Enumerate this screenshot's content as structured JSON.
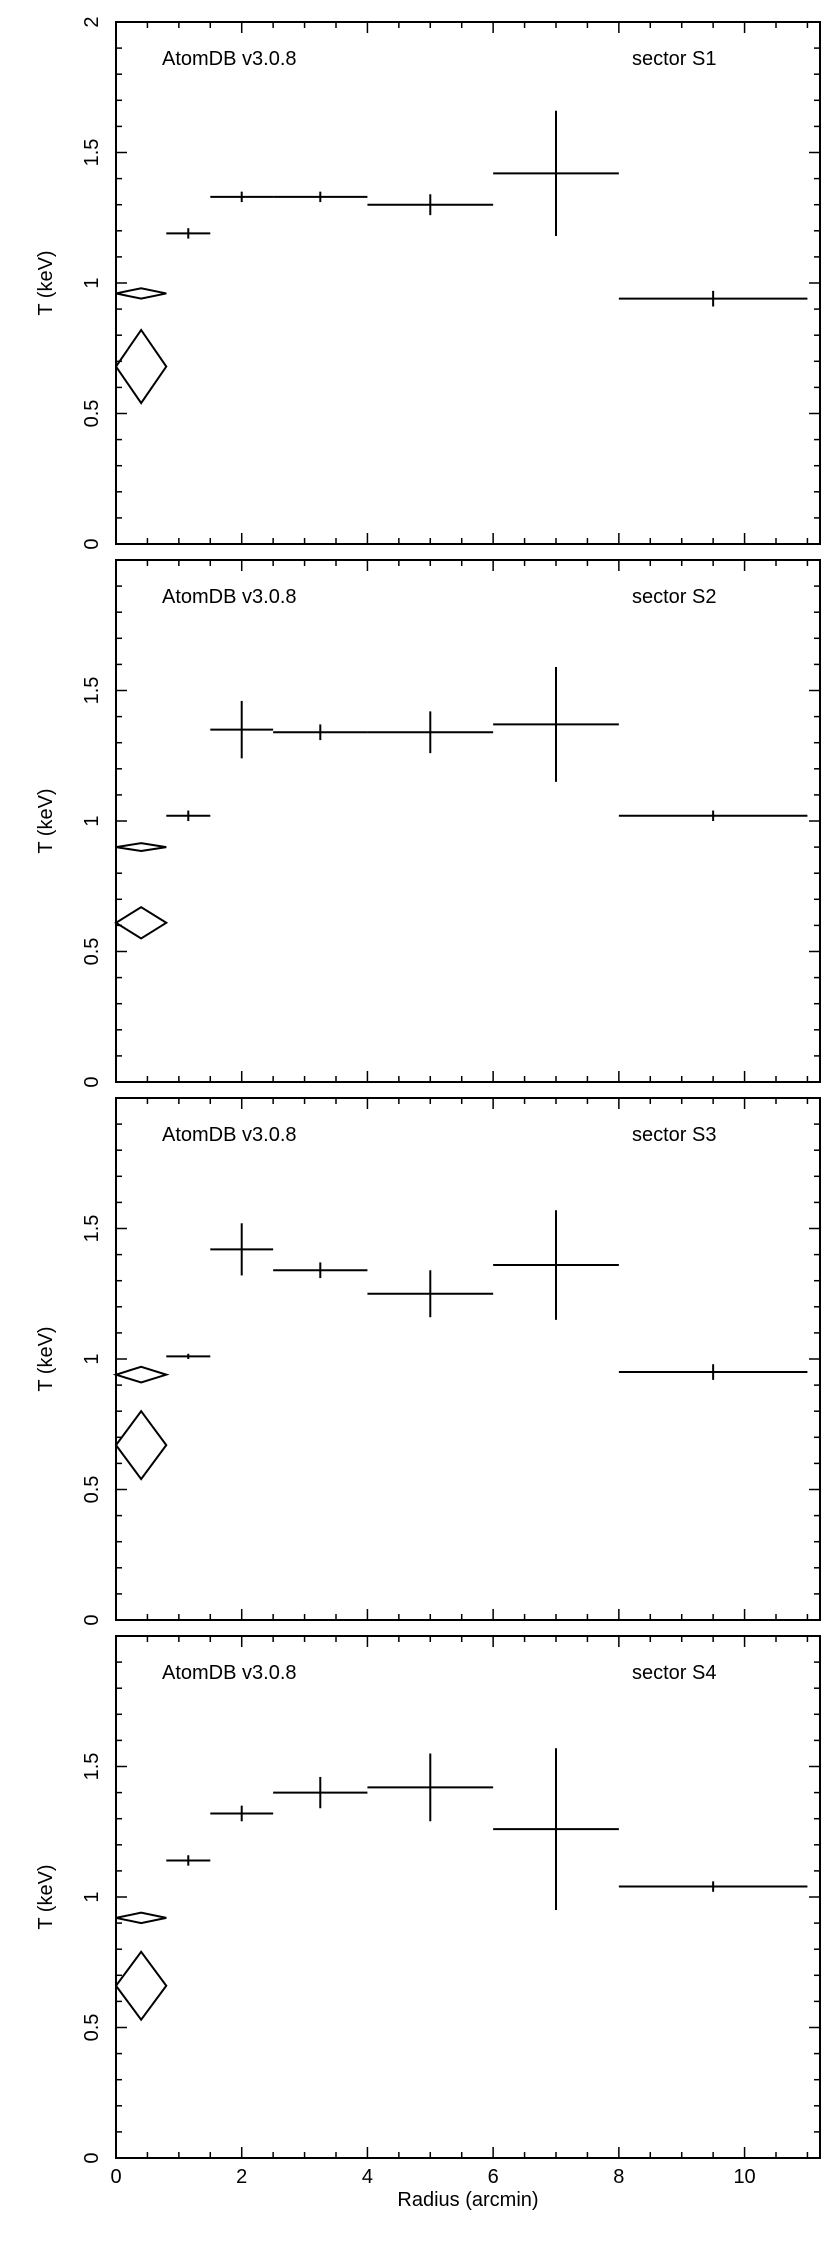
{
  "figure": {
    "xlabel": "Radius (arcmin)",
    "ylabel": "T (keV)",
    "xlim": [
      0,
      11.2
    ],
    "ylim": [
      0,
      2
    ],
    "x_ticks": [
      "0",
      "2",
      "4",
      "6",
      "8",
      "10"
    ],
    "y_ticks_top_panel": [
      "0",
      "0.5",
      "1",
      "1.5",
      "2"
    ],
    "y_ticks_other_panels": [
      "0",
      "0.5",
      "1",
      "1.5"
    ]
  },
  "chart_data": [
    {
      "type": "scatter",
      "panel_label": "AtomDB v3.0.8",
      "sector_label": "sector S1",
      "xlabel": "",
      "ylabel": "T (keV)",
      "xlim": [
        0,
        11.2
      ],
      "ylim": [
        0,
        2
      ],
      "points": [
        {
          "x": 1.15,
          "xerr": 0.35,
          "y": 1.19,
          "yerr": 0.02
        },
        {
          "x": 2.0,
          "xerr": 0.5,
          "y": 1.33,
          "yerr": 0.02
        },
        {
          "x": 3.25,
          "xerr": 0.75,
          "y": 1.33,
          "yerr": 0.02
        },
        {
          "x": 5.0,
          "xerr": 1.0,
          "y": 1.3,
          "yerr": 0.04
        },
        {
          "x": 7.0,
          "xerr": 1.0,
          "y": 1.42,
          "yerr": 0.24
        },
        {
          "x": 9.5,
          "xerr": 1.5,
          "y": 0.94,
          "yerr": 0.03
        }
      ],
      "diamonds": [
        {
          "x": 0.4,
          "xerr": 0.4,
          "y": 0.96,
          "yerr": 0.02
        },
        {
          "x": 0.4,
          "xerr": 0.4,
          "y": 0.68,
          "yerr": 0.14
        }
      ]
    },
    {
      "type": "scatter",
      "panel_label": "AtomDB v3.0.8",
      "sector_label": "sector S2",
      "xlabel": "",
      "ylabel": "T (keV)",
      "xlim": [
        0,
        11.2
      ],
      "ylim": [
        0,
        2
      ],
      "points": [
        {
          "x": 1.15,
          "xerr": 0.35,
          "y": 1.02,
          "yerr": 0.02
        },
        {
          "x": 2.0,
          "xerr": 0.5,
          "y": 1.35,
          "yerr": 0.11
        },
        {
          "x": 3.25,
          "xerr": 0.75,
          "y": 1.34,
          "yerr": 0.03
        },
        {
          "x": 5.0,
          "xerr": 1.0,
          "y": 1.34,
          "yerr": 0.08
        },
        {
          "x": 7.0,
          "xerr": 1.0,
          "y": 1.37,
          "yerr": 0.22
        },
        {
          "x": 9.5,
          "xerr": 1.5,
          "y": 1.02,
          "yerr": 0.02
        }
      ],
      "diamonds": [
        {
          "x": 0.4,
          "xerr": 0.4,
          "y": 0.9,
          "yerr": 0.015
        },
        {
          "x": 0.4,
          "xerr": 0.4,
          "y": 0.61,
          "yerr": 0.06
        }
      ]
    },
    {
      "type": "scatter",
      "panel_label": "AtomDB v3.0.8",
      "sector_label": "sector S3",
      "xlabel": "",
      "ylabel": "T (keV)",
      "xlim": [
        0,
        11.2
      ],
      "ylim": [
        0,
        2
      ],
      "points": [
        {
          "x": 1.15,
          "xerr": 0.35,
          "y": 1.01,
          "yerr": 0.01
        },
        {
          "x": 2.0,
          "xerr": 0.5,
          "y": 1.42,
          "yerr": 0.1
        },
        {
          "x": 3.25,
          "xerr": 0.75,
          "y": 1.34,
          "yerr": 0.03
        },
        {
          "x": 5.0,
          "xerr": 1.0,
          "y": 1.25,
          "yerr": 0.09
        },
        {
          "x": 7.0,
          "xerr": 1.0,
          "y": 1.36,
          "yerr": 0.21
        },
        {
          "x": 9.5,
          "xerr": 1.5,
          "y": 0.95,
          "yerr": 0.03
        }
      ],
      "diamonds": [
        {
          "x": 0.4,
          "xerr": 0.4,
          "y": 0.94,
          "yerr": 0.03
        },
        {
          "x": 0.4,
          "xerr": 0.4,
          "y": 0.67,
          "yerr": 0.13
        }
      ]
    },
    {
      "type": "scatter",
      "panel_label": "AtomDB v3.0.8",
      "sector_label": "sector S4",
      "xlabel": "Radius (arcmin)",
      "ylabel": "T (keV)",
      "xlim": [
        0,
        11.2
      ],
      "ylim": [
        0,
        2
      ],
      "points": [
        {
          "x": 1.15,
          "xerr": 0.35,
          "y": 1.14,
          "yerr": 0.02
        },
        {
          "x": 2.0,
          "xerr": 0.5,
          "y": 1.32,
          "yerr": 0.03
        },
        {
          "x": 3.25,
          "xerr": 0.75,
          "y": 1.4,
          "yerr": 0.06
        },
        {
          "x": 5.0,
          "xerr": 1.0,
          "y": 1.42,
          "yerr": 0.13
        },
        {
          "x": 7.0,
          "xerr": 1.0,
          "y": 1.26,
          "yerr": 0.31
        },
        {
          "x": 9.5,
          "xerr": 1.5,
          "y": 1.04,
          "yerr": 0.02
        }
      ],
      "diamonds": [
        {
          "x": 0.4,
          "xerr": 0.4,
          "y": 0.92,
          "yerr": 0.02
        },
        {
          "x": 0.4,
          "xerr": 0.4,
          "y": 0.66,
          "yerr": 0.13
        }
      ]
    }
  ]
}
